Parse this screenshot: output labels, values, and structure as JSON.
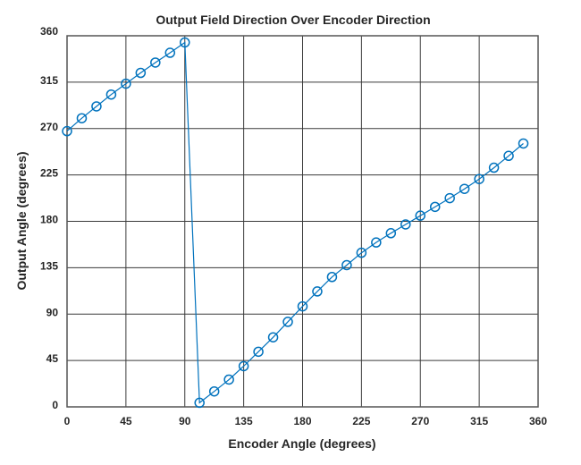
{
  "chart_data": {
    "type": "line",
    "title": "Output Field Direction Over Encoder Direction",
    "xlabel": "Encoder Angle (degrees)",
    "ylabel": "Output Angle (degrees)",
    "xlim": [
      0,
      360
    ],
    "ylim": [
      0,
      360
    ],
    "xticks": [
      0,
      45,
      90,
      135,
      180,
      225,
      270,
      315,
      360
    ],
    "yticks": [
      0,
      45,
      90,
      135,
      180,
      225,
      270,
      315,
      360
    ],
    "grid": true,
    "legend": null,
    "marker": "circle",
    "series": [
      {
        "name": "Output Angle",
        "color": "#0072BD",
        "x": [
          0,
          11.25,
          22.5,
          33.75,
          45,
          56.25,
          67.5,
          78.75,
          90,
          101.25,
          112.5,
          123.75,
          135,
          146.25,
          157.5,
          168.75,
          180,
          191.25,
          202.5,
          213.75,
          225,
          236.25,
          247.5,
          258.75,
          270,
          281.25,
          292.5,
          303.75,
          315,
          326.25,
          337.5,
          348.75
        ],
        "y": [
          267.5,
          280,
          291.5,
          303,
          313.5,
          324,
          334,
          343.5,
          353.5,
          4,
          15,
          26.5,
          39.5,
          53.5,
          67.5,
          82.5,
          97.5,
          112,
          126,
          137.5,
          149.5,
          159.5,
          168.5,
          177,
          185.5,
          194,
          202.5,
          211.5,
          221,
          232,
          243.5,
          255.5
        ]
      }
    ]
  }
}
